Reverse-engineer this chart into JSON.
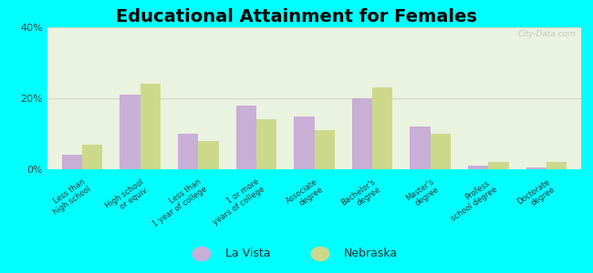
{
  "title": "Educational Attainment for Females",
  "categories": [
    "Less than\nhigh school",
    "High school\nor equiv.",
    "Less than\n1 year of college",
    "1 or more\nyears of college",
    "Associate\ndegree",
    "Bachelor's\ndegree",
    "Master's\ndegree",
    "Profess.\nschool degree",
    "Doctorate\ndegree"
  ],
  "la_vista": [
    4.0,
    21.0,
    10.0,
    18.0,
    15.0,
    20.0,
    12.0,
    1.0,
    0.5
  ],
  "nebraska": [
    7.0,
    24.0,
    8.0,
    14.0,
    11.0,
    23.0,
    10.0,
    2.0,
    2.0
  ],
  "lavista_color": "#c9aed6",
  "nebraska_color": "#ccd98a",
  "background_color": "#00ffff",
  "plot_bg_color": "#eaf2e0",
  "ylim": [
    0,
    40
  ],
  "yticks": [
    0,
    20,
    40
  ],
  "ytick_labels": [
    "0%",
    "20%",
    "40%"
  ],
  "grid_color": "#d0d8c0",
  "title_fontsize": 14,
  "legend_labels": [
    "La Vista",
    "Nebraska"
  ],
  "watermark": "City-Data.com"
}
